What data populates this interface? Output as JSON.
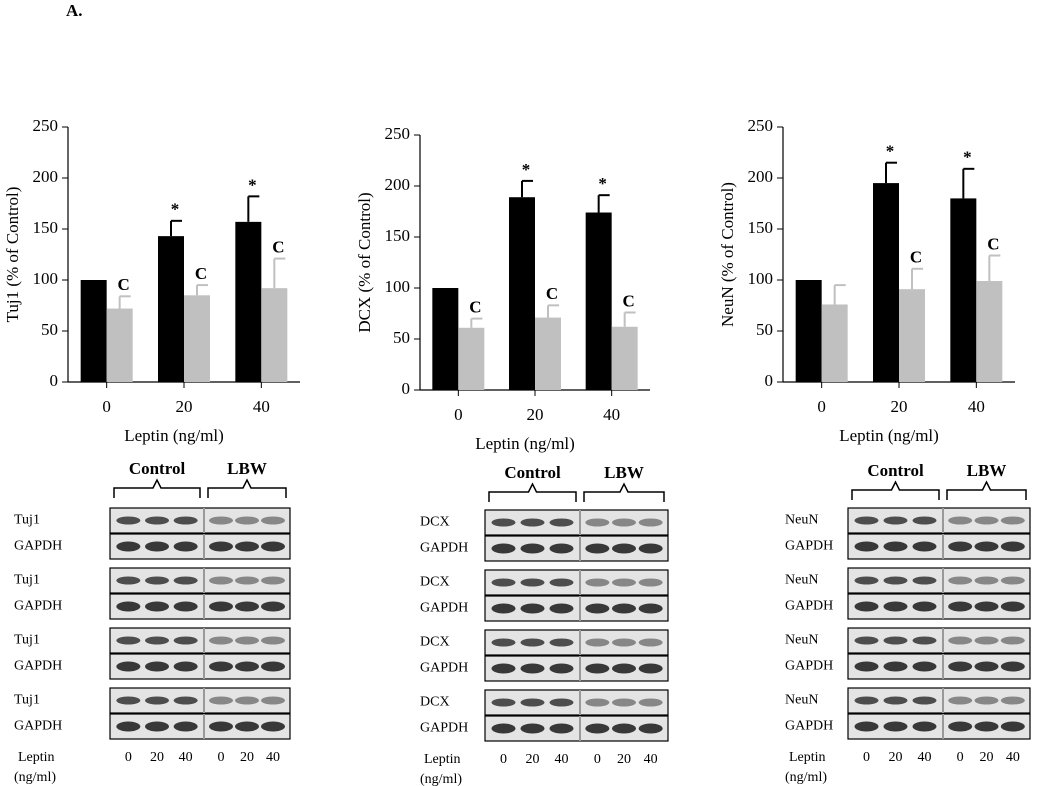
{
  "panel_label": "A.",
  "chart_data": [
    {
      "type": "bar",
      "xlabel": "Leptin (ng/ml)",
      "ylabel": "Tuj1 (% of Control)",
      "categories": [
        "0",
        "20",
        "40"
      ],
      "ylim": [
        0,
        250
      ],
      "yticks": [
        0,
        50,
        100,
        150,
        200,
        250
      ],
      "series": [
        {
          "color": "#000000",
          "values": [
            100,
            143,
            157
          ],
          "errors": [
            null,
            15,
            25
          ],
          "markers": [
            null,
            "*",
            "*"
          ]
        },
        {
          "color": "#c0c0c0",
          "values": [
            72,
            85,
            92
          ],
          "errors": [
            12,
            10,
            29
          ],
          "markers": [
            "C",
            "C",
            "C"
          ]
        }
      ]
    },
    {
      "type": "bar",
      "xlabel": "Leptin (ng/ml)",
      "ylabel": "DCX (% of Control)",
      "categories": [
        "0",
        "20",
        "40"
      ],
      "ylim": [
        0,
        250
      ],
      "yticks": [
        0,
        50,
        100,
        150,
        200,
        250
      ],
      "series": [
        {
          "color": "#000000",
          "values": [
            100,
            189,
            174
          ],
          "errors": [
            null,
            16,
            17
          ],
          "markers": [
            null,
            "*",
            "*"
          ]
        },
        {
          "color": "#c0c0c0",
          "values": [
            61,
            71,
            62
          ],
          "errors": [
            9,
            12,
            14
          ],
          "markers": [
            "C",
            "C",
            "C"
          ]
        }
      ]
    },
    {
      "type": "bar",
      "xlabel": "Leptin (ng/ml)",
      "ylabel": "NeuN (% of Control)",
      "categories": [
        "0",
        "20",
        "40"
      ],
      "ylim": [
        0,
        250
      ],
      "yticks": [
        0,
        50,
        100,
        150,
        200,
        250
      ],
      "series": [
        {
          "color": "#000000",
          "values": [
            100,
            195,
            180
          ],
          "errors": [
            null,
            20,
            29
          ],
          "markers": [
            null,
            "*",
            "*"
          ]
        },
        {
          "color": "#c0c0c0",
          "values": [
            76,
            91,
            99
          ],
          "errors": [
            19,
            20,
            25
          ],
          "markers": [
            null,
            "C",
            "C"
          ]
        }
      ]
    }
  ],
  "blots": [
    {
      "groups": [
        "Control",
        "LBW"
      ],
      "rows": [
        [
          "Tuj1",
          "GAPDH"
        ],
        [
          "Tuj1",
          "GAPDH"
        ],
        [
          "Tuj1",
          "GAPDH"
        ],
        [
          "Tuj1",
          "GAPDH"
        ]
      ],
      "footer": [
        "Leptin",
        "(ng/ml)"
      ],
      "lanes": [
        "0",
        "20",
        "40",
        "0",
        "20",
        "40"
      ]
    },
    {
      "groups": [
        "Control",
        "LBW"
      ],
      "rows": [
        [
          "DCX",
          "GAPDH"
        ],
        [
          "DCX",
          "GAPDH"
        ],
        [
          "DCX",
          "GAPDH"
        ],
        [
          "DCX",
          "GAPDH"
        ]
      ],
      "footer": [
        "Leptin",
        "(ng/ml)"
      ],
      "lanes": [
        "0",
        "20",
        "40",
        "0",
        "20",
        "40"
      ]
    },
    {
      "groups": [
        "Control",
        "LBW"
      ],
      "rows": [
        [
          "NeuN",
          "GAPDH"
        ],
        [
          "NeuN",
          "GAPDH"
        ],
        [
          "NeuN",
          "GAPDH"
        ],
        [
          "NeuN",
          "GAPDH"
        ]
      ],
      "footer": [
        "Leptin",
        "(ng/ml)"
      ],
      "lanes": [
        "0",
        "20",
        "40",
        "0",
        "20",
        "40"
      ]
    }
  ]
}
